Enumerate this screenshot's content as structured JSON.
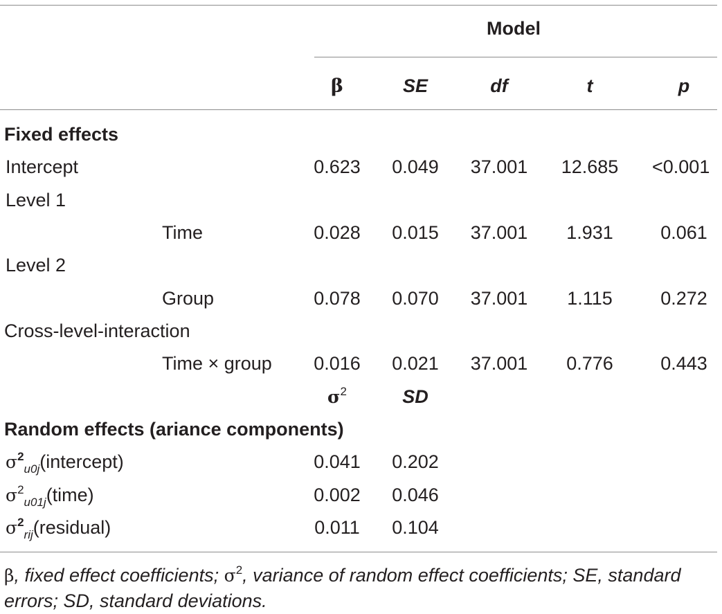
{
  "table": {
    "group_header": "Model",
    "columns": {
      "beta": "β",
      "se": "SE",
      "df": "df",
      "t": "t",
      "p": "p"
    },
    "fixed_effects_heading": "Fixed effects",
    "intercept": {
      "label": "Intercept",
      "beta": "0.623",
      "se": "0.049",
      "df": "37.001",
      "t": "12.685",
      "p": "<0.001"
    },
    "level1": {
      "label": "Level 1"
    },
    "time": {
      "label": "Time",
      "beta": "0.028",
      "se": "0.015",
      "df": "37.001",
      "t": "1.931",
      "p": "0.061"
    },
    "level2": {
      "label": "Level 2"
    },
    "group": {
      "label": "Group",
      "beta": "0.078",
      "se": "0.070",
      "df": "37.001",
      "t": "1.115",
      "p": "0.272"
    },
    "cross": {
      "label": "Cross-level-interaction"
    },
    "interaction": {
      "label": "Time × group",
      "beta": "0.016",
      "se": "0.021",
      "df": "37.001",
      "t": "0.776",
      "p": "0.443"
    },
    "random_subheader": {
      "sigma": "σ",
      "sigma_sup": "2",
      "sd": "SD"
    },
    "random_effects_heading": "Random effects (ariance components)",
    "random_rows": [
      {
        "sigma": "σ",
        "sup": "2",
        "sub": "u0j",
        "label": "(intercept)",
        "variance": "0.041",
        "sd": "0.202"
      },
      {
        "sigma": "σ",
        "sup": "2",
        "sub": "u01j",
        "label": "(time)",
        "variance": "0.002",
        "sd": "0.046"
      },
      {
        "sigma": "σ",
        "sup": "2",
        "sub": "rij",
        "label": "(residual)",
        "variance": "0.011",
        "sd": "0.104"
      }
    ]
  },
  "footnote": {
    "beta_sym": "β",
    "beta_def": ", fixed effect coefficients; ",
    "sigma_sym": "σ",
    "sigma_sup": "2",
    "sigma_def": ", variance of random effect coefficients; SE, standard errors; SD, standard deviations."
  }
}
